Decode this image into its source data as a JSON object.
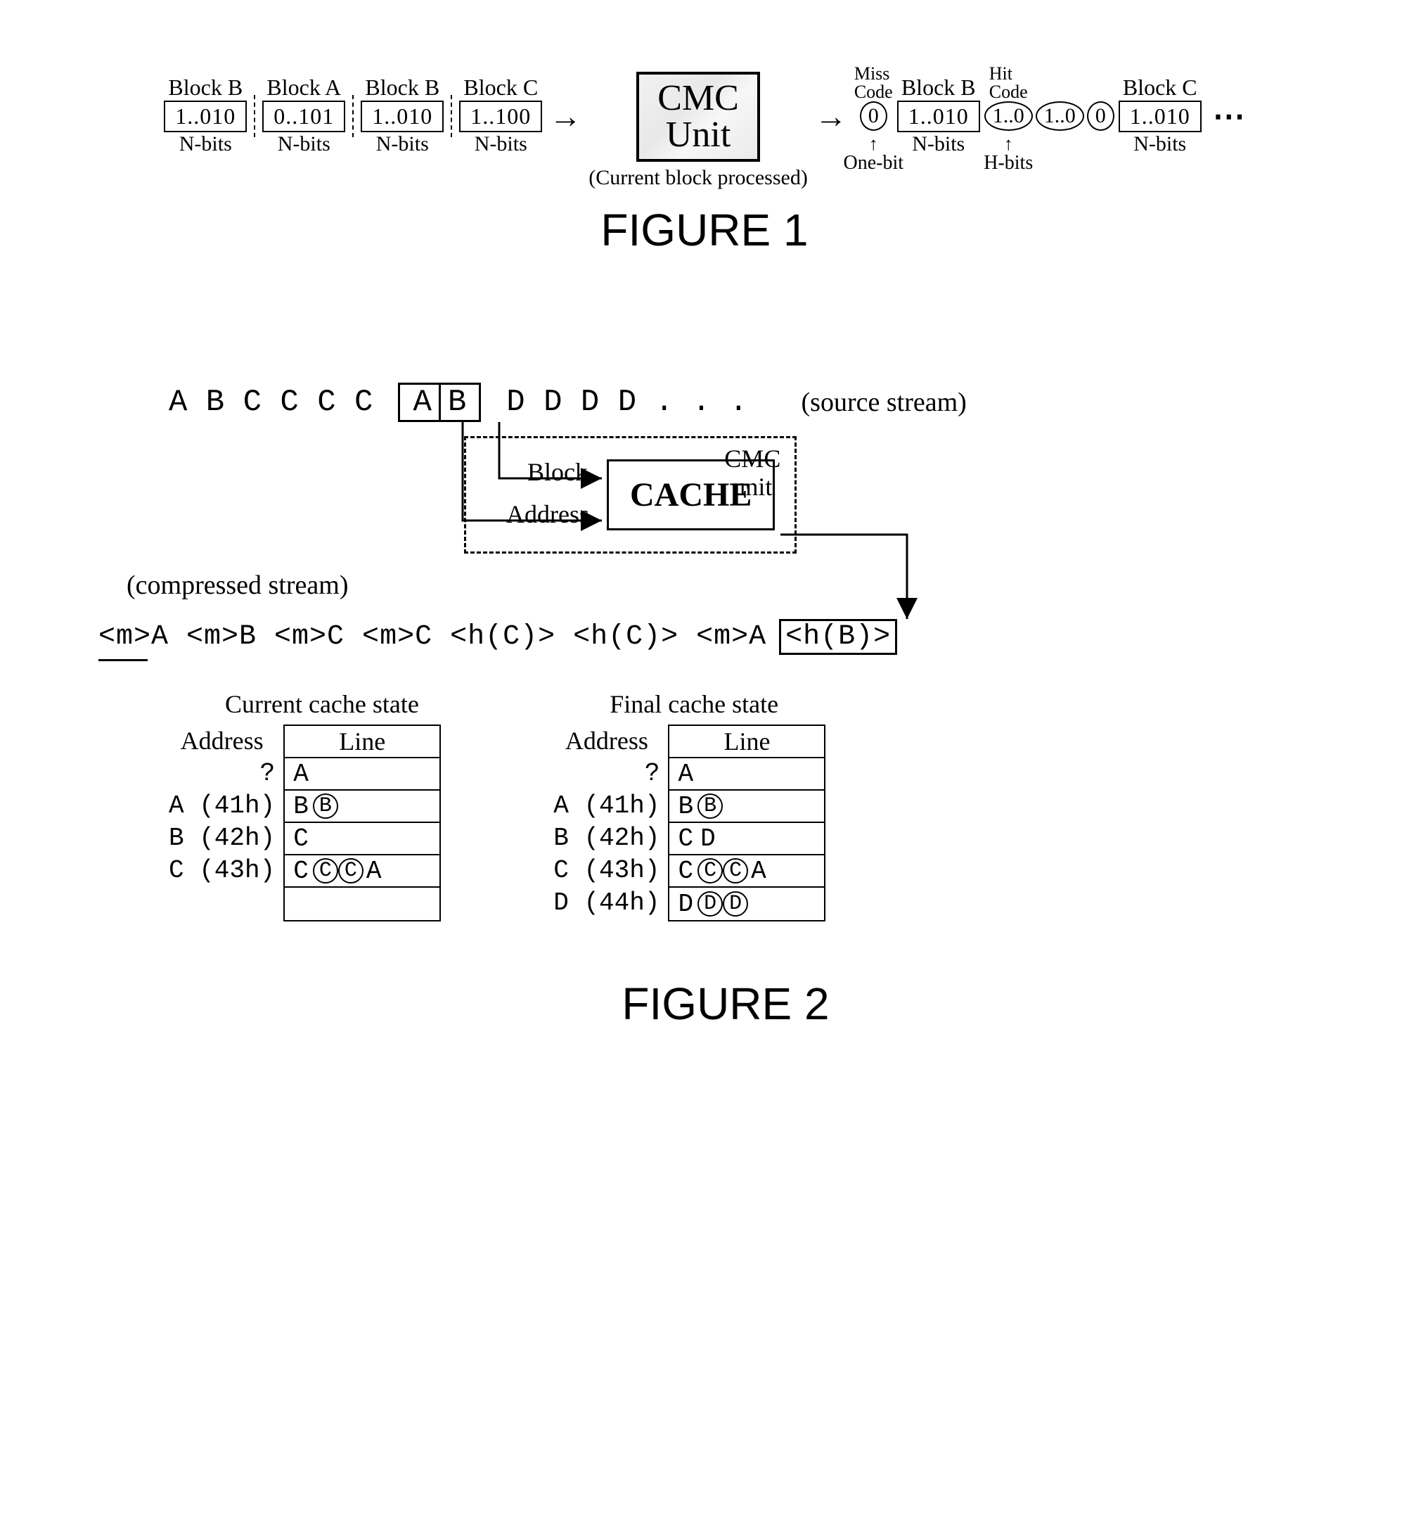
{
  "fig1": {
    "title": "FIGURE 1",
    "input_blocks": [
      {
        "label": "Block B",
        "bits": "1..010",
        "nbits": "N-bits"
      },
      {
        "label": "Block A",
        "bits": "0..101",
        "nbits": "N-bits"
      },
      {
        "label": "Block B",
        "bits": "1..010",
        "nbits": "N-bits"
      },
      {
        "label": "Block C",
        "bits": "1..100",
        "nbits": "N-bits"
      }
    ],
    "cmc": {
      "line1": "CMC",
      "line2": "Unit",
      "caption": "(Current block processed)"
    },
    "miss_code_label": "Miss\nCode",
    "hit_code_label": "Hit\nCode",
    "out": {
      "miss_oval": "0",
      "block_b": {
        "label": "Block B",
        "bits": "1..010",
        "nbits": "N-bits"
      },
      "hit1": "1..0",
      "hit2": "1..0",
      "miss2": "0",
      "block_c": {
        "label": "Block C",
        "bits": "1..010",
        "nbits": "N-bits"
      }
    },
    "annot_onebit": "One-bit",
    "annot_hbits": "H-bits",
    "colors": {
      "border": "#000000",
      "bg": "#ffffff",
      "cmc_bg": "#f0f0f0"
    }
  },
  "fig2": {
    "title": "FIGURE 2",
    "source_label": "(source stream)",
    "source_pre": [
      "A",
      "B",
      "C",
      "C",
      "C",
      "C"
    ],
    "source_box": [
      "A",
      "B"
    ],
    "source_post": [
      "D",
      "D",
      "D",
      "D",
      ".",
      ".",
      "."
    ],
    "block_label": "Block",
    "address_label": "Address",
    "cache_label": "CACHE",
    "cmc_unit_label": "CMC\nunit",
    "compressed_label": "(compressed stream)",
    "compressed_tokens": [
      "<m>A",
      "<m>B",
      "<m>C",
      "<m>C",
      "<h(C)>",
      "<h(C)>",
      "<m>A"
    ],
    "compressed_hit": "<h(B)>",
    "current_cache": {
      "title": "Current cache state",
      "address_header": "Address",
      "line_header": "Line",
      "rows": [
        {
          "addr": "?",
          "cells": [
            "A"
          ]
        },
        {
          "addr": "A (41h)",
          "cells": [
            "B",
            {
              "circ": "B"
            }
          ]
        },
        {
          "addr": "B (42h)",
          "cells": [
            "C"
          ]
        },
        {
          "addr": "C (43h)",
          "cells": [
            "C",
            {
              "circ": "C"
            },
            {
              "circ": "C"
            },
            "A"
          ]
        },
        {
          "addr": "",
          "cells": []
        }
      ]
    },
    "final_cache": {
      "title": "Final cache state",
      "address_header": "Address",
      "line_header": "Line",
      "rows": [
        {
          "addr": "?",
          "cells": [
            "A"
          ]
        },
        {
          "addr": "A (41h)",
          "cells": [
            "B",
            {
              "circ": "B"
            }
          ]
        },
        {
          "addr": "B (42h)",
          "cells": [
            "C",
            "D"
          ]
        },
        {
          "addr": "C (43h)",
          "cells": [
            "C",
            {
              "circ": "C"
            },
            {
              "circ": "C"
            },
            "A"
          ]
        },
        {
          "addr": "D (44h)",
          "cells": [
            "D",
            {
              "circ": "D"
            },
            {
              "circ": "D"
            }
          ]
        }
      ]
    }
  }
}
